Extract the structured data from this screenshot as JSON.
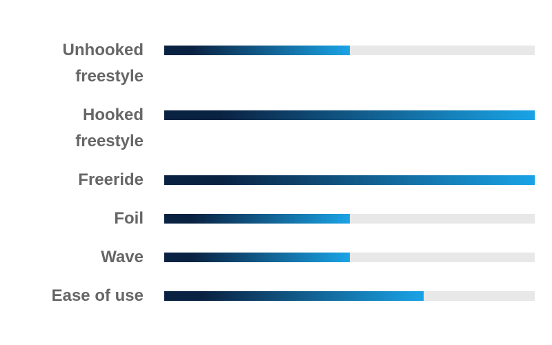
{
  "chart_data": {
    "type": "bar",
    "orientation": "horizontal",
    "categories": [
      "Unhooked freestyle",
      "Hooked freestyle",
      "Freeride",
      "Foil",
      "Wave",
      "Ease of use"
    ],
    "values": [
      50,
      100,
      100,
      50,
      50,
      70
    ],
    "xlim": [
      0,
      100
    ],
    "colors": {
      "start": "#0a2242",
      "end": "#1aa3e6",
      "track": "#e8e8e8"
    }
  }
}
